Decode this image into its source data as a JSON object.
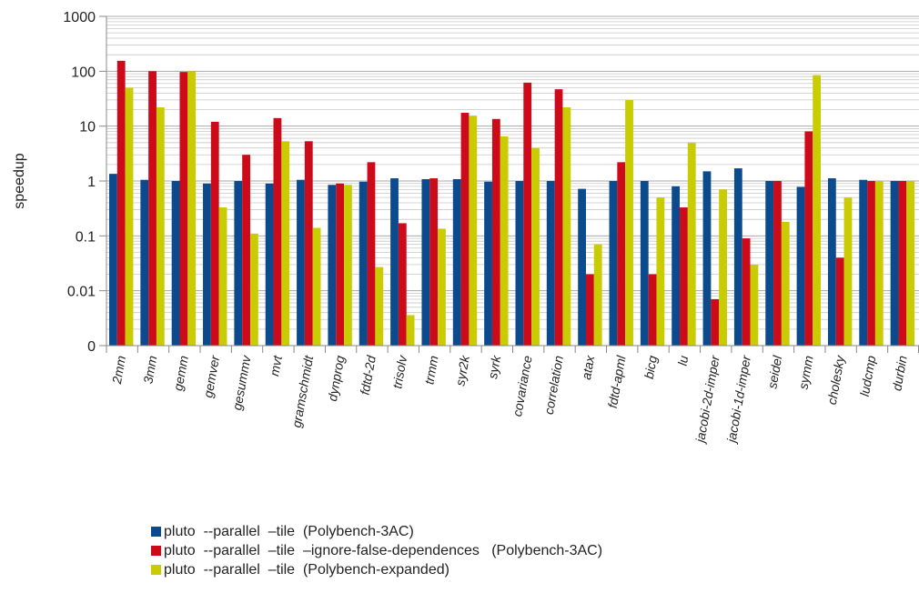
{
  "chart_data": {
    "type": "bar",
    "log_scale": true,
    "ylabel": "speedup",
    "yticks": [
      "1000",
      "100",
      "10",
      "1",
      "0.1",
      "0.01",
      "0"
    ],
    "ylim": [
      0.001,
      1000
    ],
    "grid": true,
    "legend_position": "bottom",
    "categories": [
      "2mm",
      "3mm",
      "gemm",
      "gemver",
      "gesummv",
      "mvt",
      "gramschmidt",
      "dynprog",
      "fdtd-2d",
      "trisolv",
      "trmm",
      "syr2k",
      "syrk",
      "covariance",
      "correlation",
      "atax",
      "fdtd-apml",
      "bicg",
      "lu",
      "jacobi-2d-imper",
      "jacobi-1d-imper",
      "seidel",
      "symm",
      "cholesky",
      "ludcmp",
      "durbin"
    ],
    "series": [
      {
        "name": "pluto  --parallel  –tile  (Polybench-3AC)",
        "color": "#0b4a8c",
        "values": [
          1.35,
          1.05,
          1.0,
          0.9,
          1.0,
          0.9,
          1.05,
          0.85,
          0.97,
          1.12,
          1.08,
          1.08,
          0.97,
          1.0,
          1.0,
          0.72,
          1.0,
          1.0,
          0.8,
          1.5,
          1.7,
          1.0,
          0.78,
          1.12,
          1.05,
          1.0
        ]
      },
      {
        "name": "pluto  --parallel  –tile  –ignore-false-dependences   (Polybench-3AC)",
        "color": "#cc0a1a",
        "values": [
          155,
          100,
          97,
          12,
          3.0,
          14,
          5.3,
          0.9,
          2.2,
          0.17,
          1.12,
          17.5,
          13.5,
          62,
          47,
          0.02,
          2.2,
          0.02,
          0.33,
          0.007,
          0.09,
          1.0,
          8.0,
          0.04,
          1.0,
          1.0
        ]
      },
      {
        "name": "pluto  --parallel  –tile  (Polybench-expanded)",
        "color": "#c8cc00",
        "values": [
          50,
          22,
          100,
          0.33,
          0.11,
          5.3,
          0.14,
          0.85,
          0.027,
          0.0036,
          0.135,
          15.5,
          6.5,
          4.0,
          22,
          0.07,
          30,
          0.5,
          5.0,
          0.7,
          0.03,
          0.18,
          85,
          0.5,
          1.0,
          1.0
        ]
      }
    ]
  }
}
